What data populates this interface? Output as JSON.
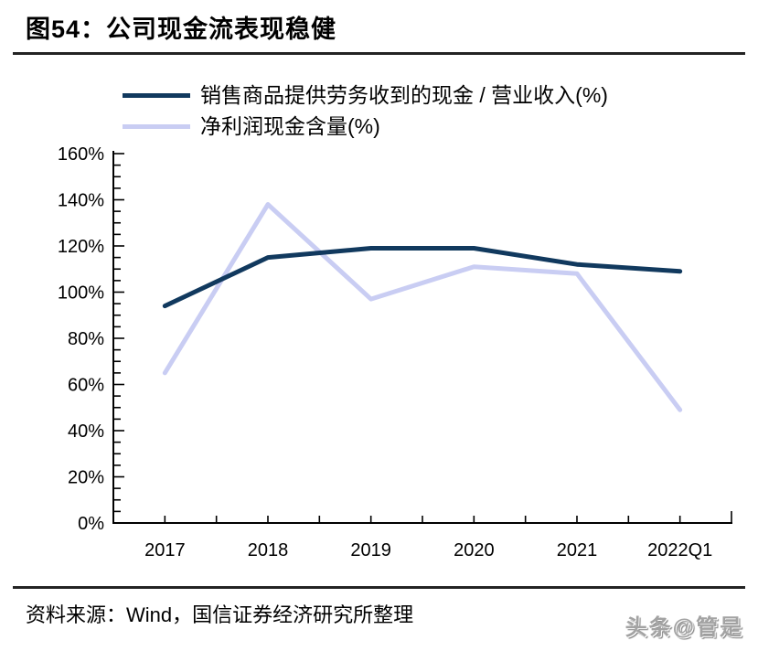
{
  "chart_data": {
    "type": "line",
    "title": "图54：公司现金流表现稳健",
    "categories": [
      "2017",
      "2018",
      "2019",
      "2020",
      "2021",
      "2022Q1"
    ],
    "series": [
      {
        "name": "销售商品提供劳务收到的现金 / 营业收入(%)",
        "color": "#11395e",
        "values": [
          94,
          115,
          119,
          119,
          112,
          109
        ]
      },
      {
        "name": "净利润现金含量(%)",
        "color": "#c9cdf3",
        "values": [
          65,
          138,
          97,
          111,
          108,
          49
        ]
      }
    ],
    "ylim": [
      0,
      160
    ],
    "ytick_step": 20,
    "yminor_step": 5,
    "ytick_labels": [
      "0%",
      "20%",
      "40%",
      "60%",
      "80%",
      "100%",
      "120%",
      "140%",
      "160%"
    ],
    "xlabel": "",
    "ylabel": "",
    "grid": false,
    "legend_position": "top-left",
    "axis_color": "#000000"
  },
  "footer": {
    "source": "资料来源：Wind，国信证券经济研究所整理",
    "watermark": "头条@管是"
  }
}
